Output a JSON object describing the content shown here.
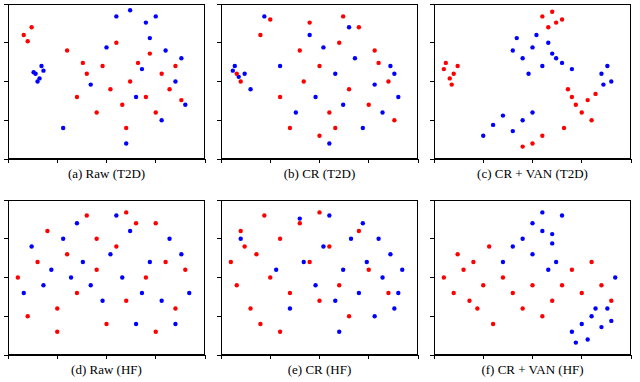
{
  "chart_data": [
    {
      "type": "scatter",
      "title": "(a) Raw (T2D)",
      "xlim": [
        0,
        100
      ],
      "ylim": [
        0,
        100
      ],
      "xticks": [
        0,
        25,
        50,
        75,
        100
      ],
      "yticks": [
        0,
        25,
        50,
        75,
        100
      ],
      "tick_labels": false,
      "grid": false,
      "marker": "circle",
      "series": [
        {
          "color": "#ff0000",
          "x": [
            8,
            12,
            10,
            30,
            35,
            40,
            48,
            52,
            58,
            62,
            66,
            70,
            75,
            78,
            82,
            85,
            55,
            45,
            60,
            72,
            88,
            38
          ],
          "values": [
            80,
            85,
            76,
            70,
            40,
            55,
            60,
            45,
            35,
            50,
            62,
            40,
            30,
            55,
            45,
            60,
            75,
            30,
            20,
            68,
            38,
            62
          ]
        },
        {
          "color": "#0000ff",
          "x": [
            14,
            16,
            18,
            15,
            13,
            17,
            28,
            55,
            62,
            70,
            75,
            80,
            85,
            90,
            60,
            50,
            42,
            68,
            78,
            88,
            65,
            72
          ],
          "values": [
            55,
            52,
            57,
            50,
            56,
            60,
            20,
            92,
            96,
            88,
            92,
            70,
            50,
            35,
            10,
            72,
            48,
            58,
            25,
            65,
            40,
            78
          ]
        }
      ]
    },
    {
      "type": "scatter",
      "title": "(b) CR (T2D)",
      "xlim": [
        0,
        100
      ],
      "ylim": [
        0,
        100
      ],
      "xticks": [
        0,
        25,
        50,
        75,
        100
      ],
      "yticks": [
        0,
        25,
        50,
        75,
        100
      ],
      "tick_labels": false,
      "grid": false,
      "marker": "circle",
      "series": [
        {
          "color": "#ff0000",
          "x": [
            8,
            10,
            20,
            25,
            30,
            40,
            45,
            50,
            55,
            60,
            65,
            70,
            75,
            80,
            85,
            88,
            35,
            50,
            62,
            42,
            58,
            78
          ],
          "values": [
            55,
            50,
            80,
            90,
            40,
            70,
            88,
            60,
            30,
            75,
            45,
            85,
            35,
            62,
            50,
            25,
            20,
            15,
            92,
            50,
            20,
            70
          ]
        },
        {
          "color": "#0000ff",
          "x": [
            6,
            9,
            7,
            12,
            15,
            22,
            30,
            38,
            48,
            52,
            58,
            62,
            68,
            72,
            78,
            82,
            86,
            90,
            45,
            55,
            65,
            88
          ],
          "values": [
            57,
            53,
            60,
            55,
            45,
            92,
            60,
            30,
            40,
            72,
            55,
            35,
            65,
            20,
            48,
            30,
            60,
            40,
            80,
            10,
            85,
            55
          ]
        }
      ]
    },
    {
      "type": "scatter",
      "title": "(c) CR + VAN (T2D)",
      "xlim": [
        0,
        100
      ],
      "ylim": [
        0,
        100
      ],
      "xticks": [
        0,
        25,
        50,
        75,
        100
      ],
      "yticks": [
        0,
        25,
        50,
        75,
        100
      ],
      "tick_labels": false,
      "grid": false,
      "marker": "circle",
      "series": [
        {
          "color": "#ff0000",
          "x": [
            5,
            8,
            10,
            12,
            6,
            9,
            55,
            60,
            65,
            62,
            58,
            70,
            72,
            75,
            78,
            80,
            68,
            45,
            50,
            55,
            82,
            66
          ],
          "values": [
            58,
            52,
            55,
            60,
            62,
            48,
            92,
            95,
            90,
            88,
            85,
            40,
            35,
            30,
            38,
            25,
            45,
            8,
            10,
            15,
            42,
            20
          ]
        },
        {
          "color": "#0000ff",
          "x": [
            40,
            45,
            50,
            55,
            60,
            65,
            70,
            48,
            58,
            52,
            30,
            35,
            40,
            45,
            50,
            85,
            88,
            90,
            86,
            25,
            62,
            42
          ],
          "values": [
            70,
            65,
            72,
            60,
            68,
            62,
            58,
            55,
            75,
            80,
            22,
            28,
            18,
            25,
            30,
            55,
            60,
            50,
            48,
            15,
            65,
            78
          ]
        }
      ]
    },
    {
      "type": "scatter",
      "title": "(d) Raw (HF)",
      "xlim": [
        0,
        100
      ],
      "ylim": [
        0,
        100
      ],
      "xticks": [
        0,
        25,
        50,
        75,
        100
      ],
      "yticks": [
        0,
        25,
        50,
        75,
        100
      ],
      "tick_labels": false,
      "grid": false,
      "marker": "circle",
      "series": [
        {
          "color": "#ff0000",
          "x": [
            5,
            10,
            15,
            20,
            25,
            30,
            35,
            40,
            45,
            50,
            55,
            60,
            65,
            70,
            75,
            80,
            85,
            90,
            25,
            45,
            60,
            75
          ],
          "values": [
            50,
            25,
            60,
            80,
            30,
            65,
            40,
            90,
            55,
            20,
            70,
            35,
            85,
            50,
            15,
            60,
            30,
            55,
            15,
            75,
            92,
            85
          ]
        },
        {
          "color": "#0000ff",
          "x": [
            8,
            12,
            18,
            22,
            28,
            32,
            38,
            42,
            48,
            52,
            58,
            62,
            68,
            72,
            78,
            82,
            88,
            92,
            35,
            55,
            65,
            85
          ],
          "values": [
            40,
            70,
            45,
            55,
            75,
            50,
            60,
            45,
            35,
            65,
            50,
            80,
            40,
            60,
            35,
            75,
            65,
            40,
            85,
            90,
            20,
            20
          ]
        }
      ]
    },
    {
      "type": "scatter",
      "title": "(e) CR (HF)",
      "xlim": [
        0,
        100
      ],
      "ylim": [
        0,
        100
      ],
      "xticks": [
        0,
        25,
        50,
        75,
        100
      ],
      "yticks": [
        0,
        25,
        50,
        75,
        100
      ],
      "tick_labels": false,
      "grid": false,
      "marker": "circle",
      "series": [
        {
          "color": "#ff0000",
          "x": [
            5,
            8,
            10,
            15,
            18,
            22,
            25,
            30,
            35,
            40,
            45,
            50,
            55,
            60,
            65,
            70,
            75,
            85,
            20,
            30,
            50,
            12
          ],
          "values": [
            60,
            45,
            80,
            30,
            65,
            90,
            50,
            75,
            40,
            85,
            60,
            35,
            70,
            45,
            25,
            80,
            55,
            40,
            20,
            15,
            92,
            70
          ]
        },
        {
          "color": "#0000ff",
          "x": [
            10,
            28,
            35,
            42,
            48,
            52,
            58,
            62,
            66,
            70,
            74,
            78,
            82,
            86,
            90,
            92,
            60,
            72,
            40,
            55,
            88,
            80
          ],
          "values": [
            75,
            55,
            30,
            60,
            45,
            70,
            35,
            55,
            75,
            40,
            60,
            25,
            50,
            65,
            40,
            55,
            15,
            85,
            88,
            90,
            30,
            75
          ]
        }
      ]
    },
    {
      "type": "scatter",
      "title": "(f) CR + VAN (HF)",
      "xlim": [
        0,
        100
      ],
      "ylim": [
        0,
        100
      ],
      "xticks": [
        0,
        25,
        50,
        75,
        100
      ],
      "yticks": [
        0,
        25,
        50,
        75,
        100
      ],
      "tick_labels": false,
      "grid": false,
      "marker": "circle",
      "series": [
        {
          "color": "#ff0000",
          "x": [
            5,
            10,
            15,
            18,
            20,
            25,
            22,
            30,
            35,
            40,
            45,
            50,
            55,
            60,
            65,
            70,
            75,
            80,
            85,
            90,
            12,
            28
          ],
          "values": [
            50,
            40,
            55,
            35,
            60,
            45,
            30,
            20,
            50,
            40,
            30,
            45,
            25,
            35,
            45,
            55,
            40,
            60,
            45,
            35,
            65,
            70
          ]
        },
        {
          "color": "#0000ff",
          "x": [
            40,
            45,
            50,
            55,
            60,
            65,
            50,
            55,
            60,
            35,
            70,
            75,
            80,
            85,
            88,
            90,
            78,
            82,
            58,
            62,
            92,
            72
          ],
          "values": [
            70,
            75,
            85,
            80,
            72,
            90,
            65,
            92,
            78,
            60,
            15,
            20,
            25,
            18,
            30,
            22,
            10,
            30,
            55,
            60,
            50,
            8
          ]
        }
      ]
    }
  ]
}
